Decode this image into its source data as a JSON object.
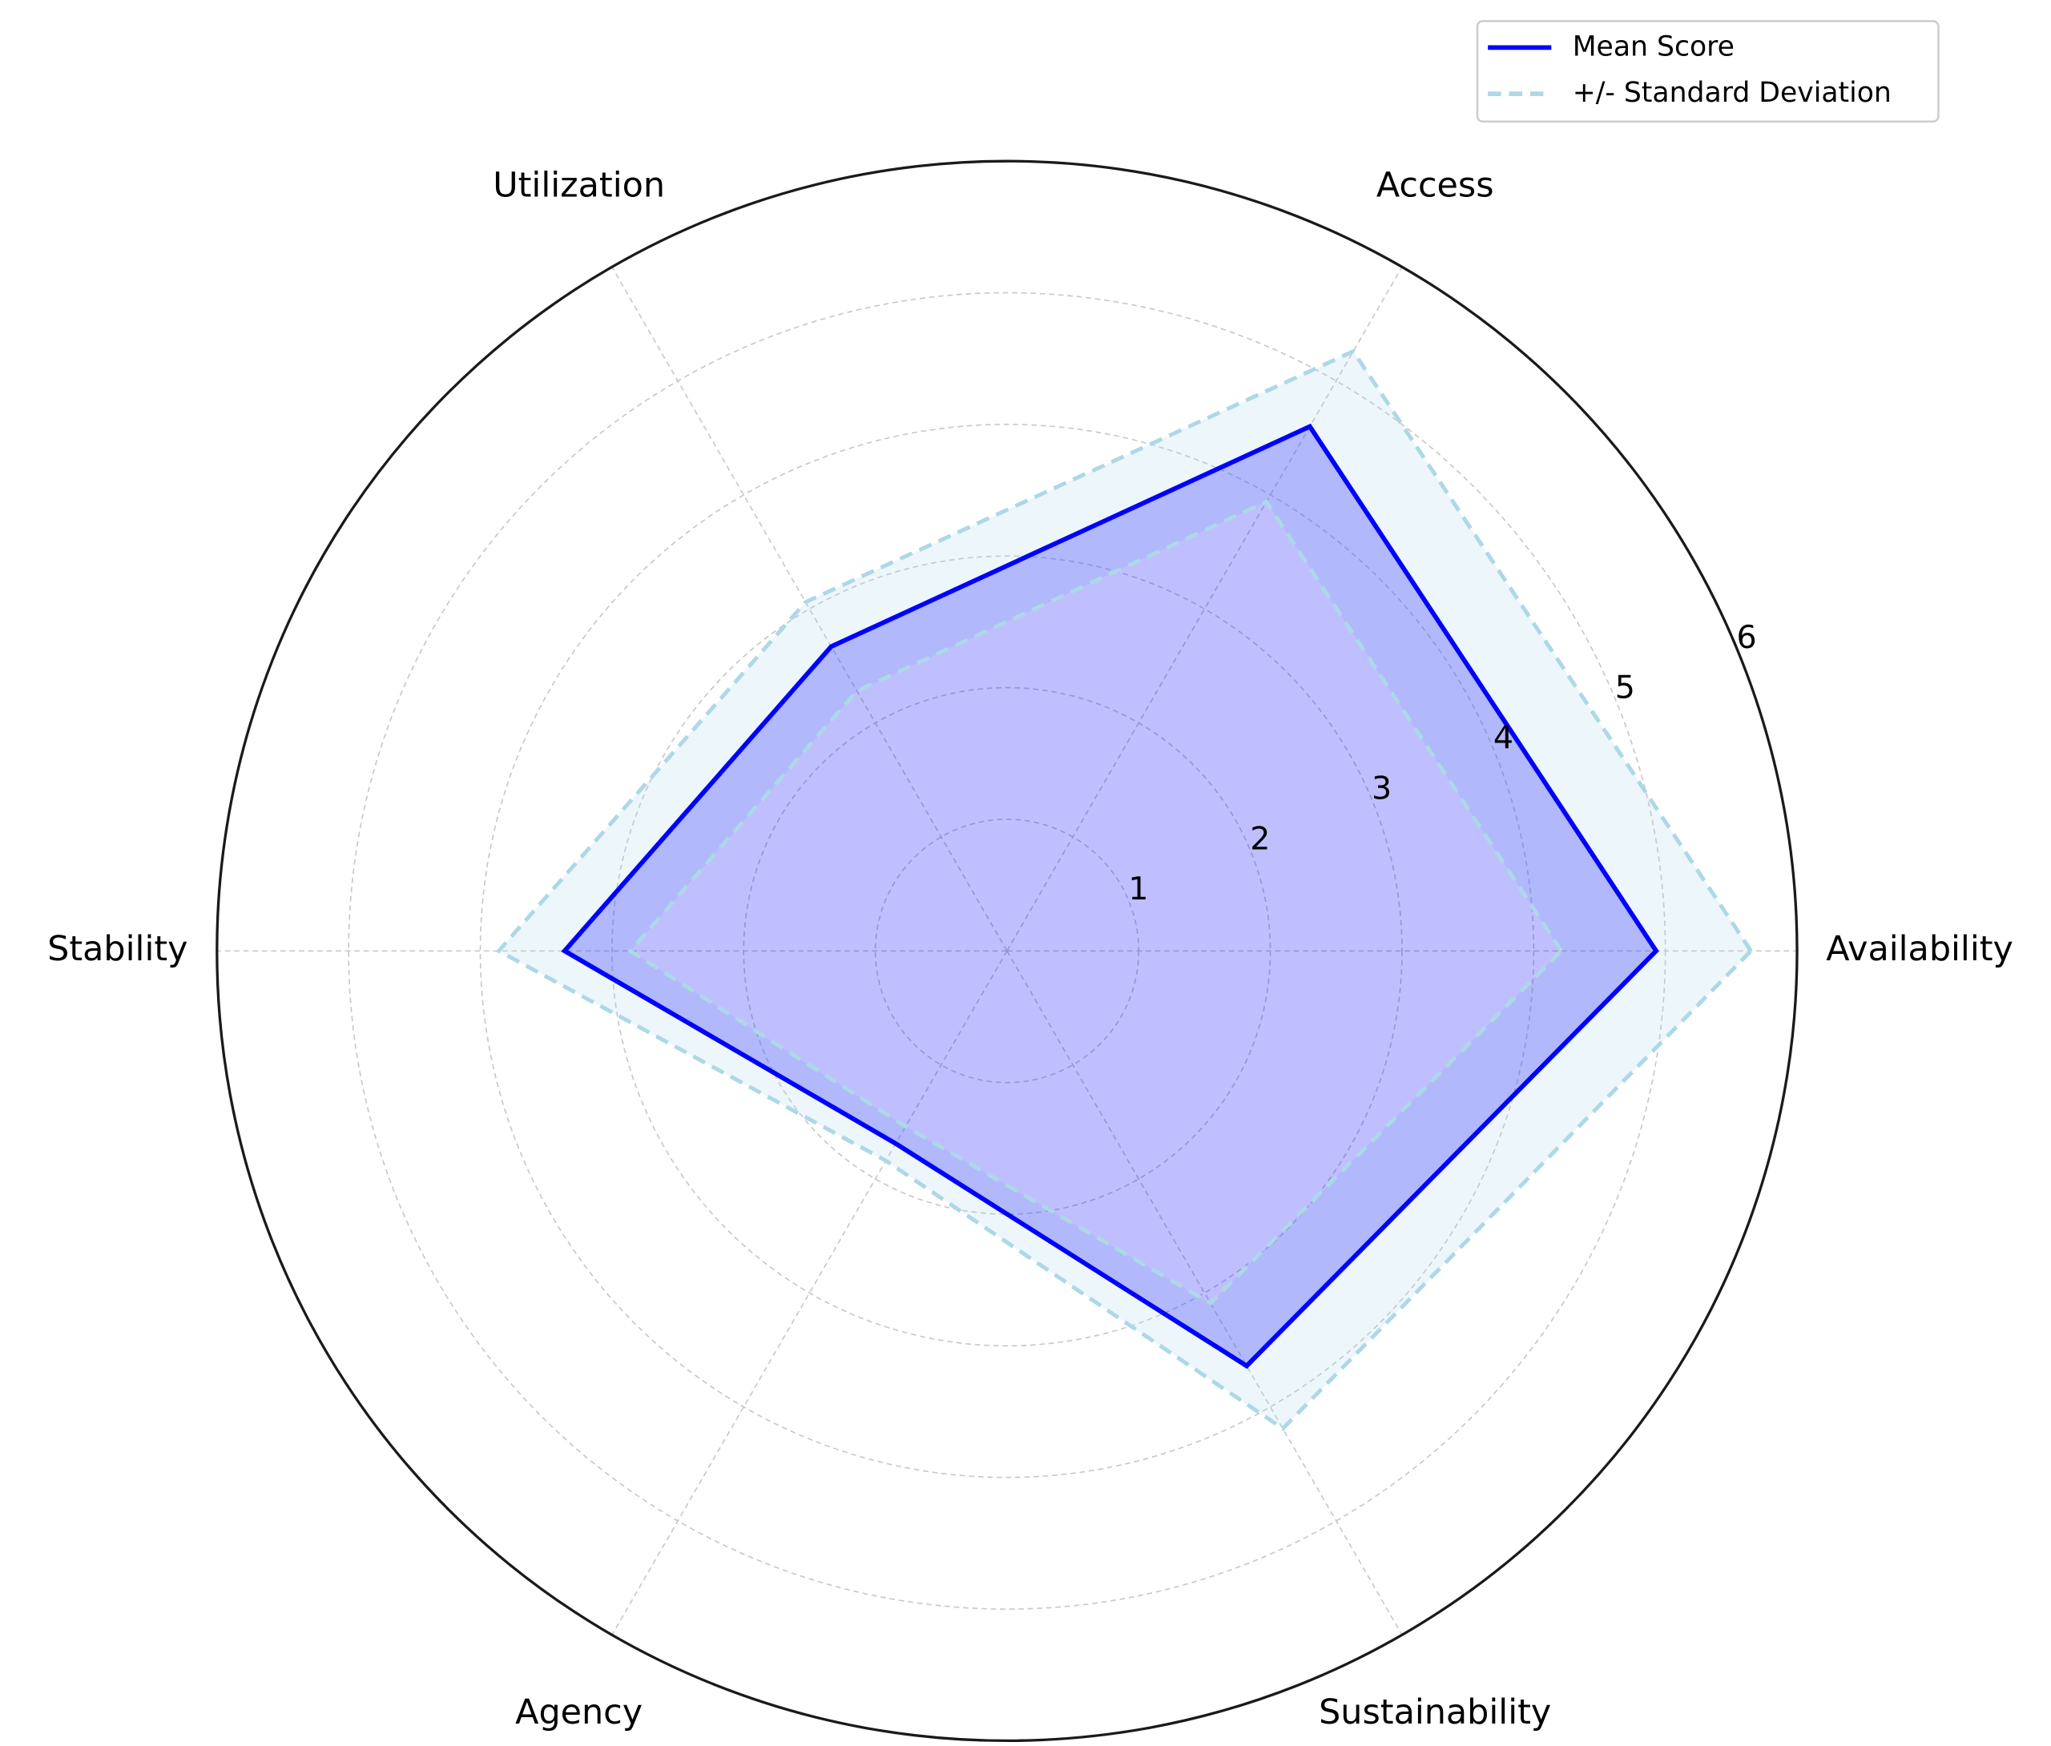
{
  "chart_data": {
    "type": "radar",
    "categories": [
      "Availability",
      "Access",
      "Utilization",
      "Stability",
      "Agency",
      "Sustainability"
    ],
    "series": [
      {
        "name": "Mean Score",
        "color": "#0000ff",
        "values": [
          4.93,
          4.6,
          2.67,
          3.36,
          1.69,
          3.64
        ]
      },
      {
        "name": "+/- Standard Deviation",
        "color": "#add8e6",
        "values": [
          0.72,
          0.66,
          0.39,
          0.5,
          0.15,
          0.55
        ]
      }
    ],
    "rlim": [
      0,
      6
    ],
    "rticks": [
      1,
      2,
      3,
      4,
      5,
      6
    ],
    "grid": true,
    "legend": "upper right"
  }
}
